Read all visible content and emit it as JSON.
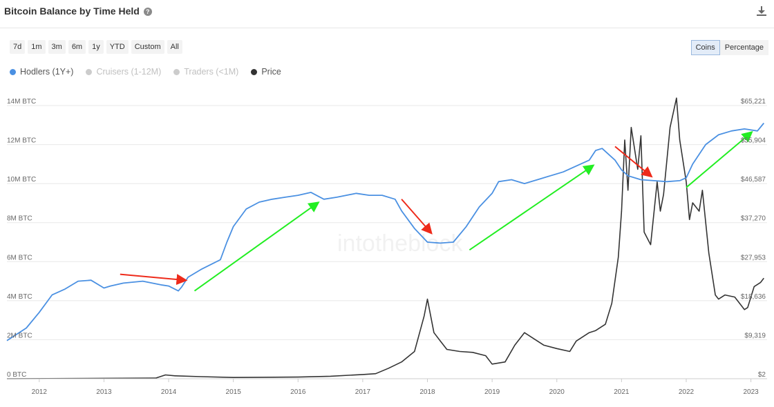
{
  "header": {
    "title": "Bitcoin Balance by Time Held"
  },
  "range_buttons": [
    "7d",
    "1m",
    "3m",
    "6m",
    "1y",
    "YTD",
    "Custom",
    "All"
  ],
  "mode_buttons": {
    "coins": "Coins",
    "percentage": "Percentage"
  },
  "watermark": "intotheblock",
  "colors": {
    "hodlers": "#4a90e2",
    "price": "#333333",
    "inactive": "#cccccc",
    "arrow_up": "#22ee22",
    "arrow_down": "#ee2a1a"
  },
  "chart_data": {
    "type": "line",
    "xlim": [
      2011.5,
      2023.25
    ],
    "x_ticks": [
      "2012",
      "2013",
      "2014",
      "2015",
      "2016",
      "2017",
      "2018",
      "2019",
      "2020",
      "2021",
      "2022",
      "2023"
    ],
    "y_left_ticks": [
      "0 BTC",
      "2M BTC",
      "4M BTC",
      "6M BTC",
      "8M BTC",
      "10M BTC",
      "12M BTC",
      "14M BTC"
    ],
    "y_left_lim": [
      0,
      14
    ],
    "y_right_ticks": [
      "$2",
      "$9,319",
      "$18,636",
      "$27,953",
      "$37,270",
      "$46,587",
      "$55,904",
      "$65,221"
    ],
    "y_right_lim": [
      2,
      65221
    ],
    "legend": [
      {
        "label": "Hodlers (1Y+)",
        "color": "#4a90e2",
        "active": true
      },
      {
        "label": "Cruisers (1-12M)",
        "color": "#cccccc",
        "active": false
      },
      {
        "label": "Traders (<1M)",
        "color": "#cccccc",
        "active": false
      },
      {
        "label": "Price",
        "color": "#333333",
        "active": true
      }
    ],
    "series": [
      {
        "name": "Hodlers (1Y+)",
        "unit": "M BTC",
        "x": [
          2011.5,
          2011.8,
          2012.0,
          2012.2,
          2012.4,
          2012.6,
          2012.8,
          2013.0,
          2013.1,
          2013.3,
          2013.6,
          2013.9,
          2014.0,
          2014.15,
          2014.2,
          2014.3,
          2014.5,
          2014.8,
          2014.9,
          2015.0,
          2015.2,
          2015.4,
          2015.6,
          2015.8,
          2016.0,
          2016.2,
          2016.4,
          2016.6,
          2016.9,
          2017.1,
          2017.3,
          2017.5,
          2017.6,
          2017.8,
          2018.0,
          2018.2,
          2018.4,
          2018.6,
          2018.8,
          2019.0,
          2019.1,
          2019.3,
          2019.5,
          2019.7,
          2019.9,
          2020.1,
          2020.3,
          2020.5,
          2020.6,
          2020.7,
          2020.9,
          2021.0,
          2021.1,
          2021.3,
          2021.5,
          2021.7,
          2021.9,
          2022.0,
          2022.1,
          2022.3,
          2022.5,
          2022.7,
          2022.9,
          2023.1,
          2023.2
        ],
        "y": [
          1.95,
          2.6,
          3.4,
          4.3,
          4.6,
          5.0,
          5.05,
          4.65,
          4.75,
          4.9,
          5.0,
          4.8,
          4.75,
          4.5,
          4.7,
          5.2,
          5.6,
          6.1,
          7.0,
          7.8,
          8.7,
          9.05,
          9.2,
          9.3,
          9.4,
          9.55,
          9.2,
          9.3,
          9.5,
          9.4,
          9.4,
          9.2,
          8.6,
          7.7,
          7.0,
          6.95,
          7.0,
          7.8,
          8.8,
          9.5,
          10.1,
          10.2,
          10.0,
          10.2,
          10.4,
          10.6,
          10.9,
          11.2,
          11.7,
          11.8,
          11.2,
          10.7,
          10.4,
          10.2,
          10.15,
          10.1,
          10.15,
          10.3,
          11.0,
          12.0,
          12.5,
          12.7,
          12.8,
          12.7,
          13.1
        ]
      },
      {
        "name": "Price",
        "unit": "USD",
        "x": [
          2011.5,
          2013.0,
          2013.8,
          2013.95,
          2014.1,
          2014.5,
          2015.0,
          2016.0,
          2016.5,
          2017.0,
          2017.2,
          2017.4,
          2017.6,
          2017.8,
          2017.95,
          2018.0,
          2018.1,
          2018.2,
          2018.3,
          2018.5,
          2018.7,
          2018.9,
          2019.0,
          2019.2,
          2019.35,
          2019.5,
          2019.6,
          2019.8,
          2020.0,
          2020.2,
          2020.3,
          2020.5,
          2020.6,
          2020.75,
          2020.85,
          2020.95,
          2021.0,
          2021.05,
          2021.1,
          2021.15,
          2021.25,
          2021.3,
          2021.35,
          2021.45,
          2021.55,
          2021.6,
          2021.65,
          2021.75,
          2021.85,
          2021.9,
          2022.0,
          2022.05,
          2022.1,
          2022.2,
          2022.25,
          2022.35,
          2022.45,
          2022.5,
          2022.6,
          2022.75,
          2022.9,
          2022.95,
          2023.05,
          2023.15,
          2023.2
        ],
        "y": [
          5,
          100,
          150,
          900,
          700,
          500,
          300,
          400,
          600,
          1000,
          1200,
          2500,
          4000,
          6500,
          15000,
          19000,
          11000,
          9000,
          7000,
          6500,
          6300,
          5500,
          3500,
          4000,
          8000,
          11000,
          10000,
          8000,
          7200,
          6500,
          9000,
          11000,
          11500,
          13000,
          18000,
          29000,
          40000,
          57000,
          45000,
          60000,
          50000,
          58000,
          35000,
          32000,
          47000,
          40000,
          44000,
          60000,
          67000,
          57000,
          47000,
          38000,
          42000,
          40000,
          45000,
          30000,
          20000,
          19000,
          20000,
          19500,
          16500,
          17000,
          22000,
          23000,
          24000
        ]
      }
    ],
    "annotations": [
      {
        "type": "arrow",
        "color": "red",
        "from": [
          2013.25,
          5.35
        ],
        "to": [
          2014.25,
          5.05
        ]
      },
      {
        "type": "arrow",
        "color": "green",
        "from": [
          2014.4,
          4.5
        ],
        "to": [
          2016.3,
          9.0
        ]
      },
      {
        "type": "arrow",
        "color": "red",
        "from": [
          2017.6,
          9.2
        ],
        "to": [
          2018.05,
          7.5
        ]
      },
      {
        "type": "arrow",
        "color": "green",
        "from": [
          2018.65,
          6.6
        ],
        "to": [
          2020.55,
          10.9
        ]
      },
      {
        "type": "arrow",
        "color": "red",
        "from": [
          2020.9,
          11.9
        ],
        "to": [
          2021.45,
          10.4
        ]
      },
      {
        "type": "arrow",
        "color": "green",
        "from": [
          2022.0,
          9.8
        ],
        "to": [
          2023.0,
          12.6
        ]
      }
    ]
  }
}
